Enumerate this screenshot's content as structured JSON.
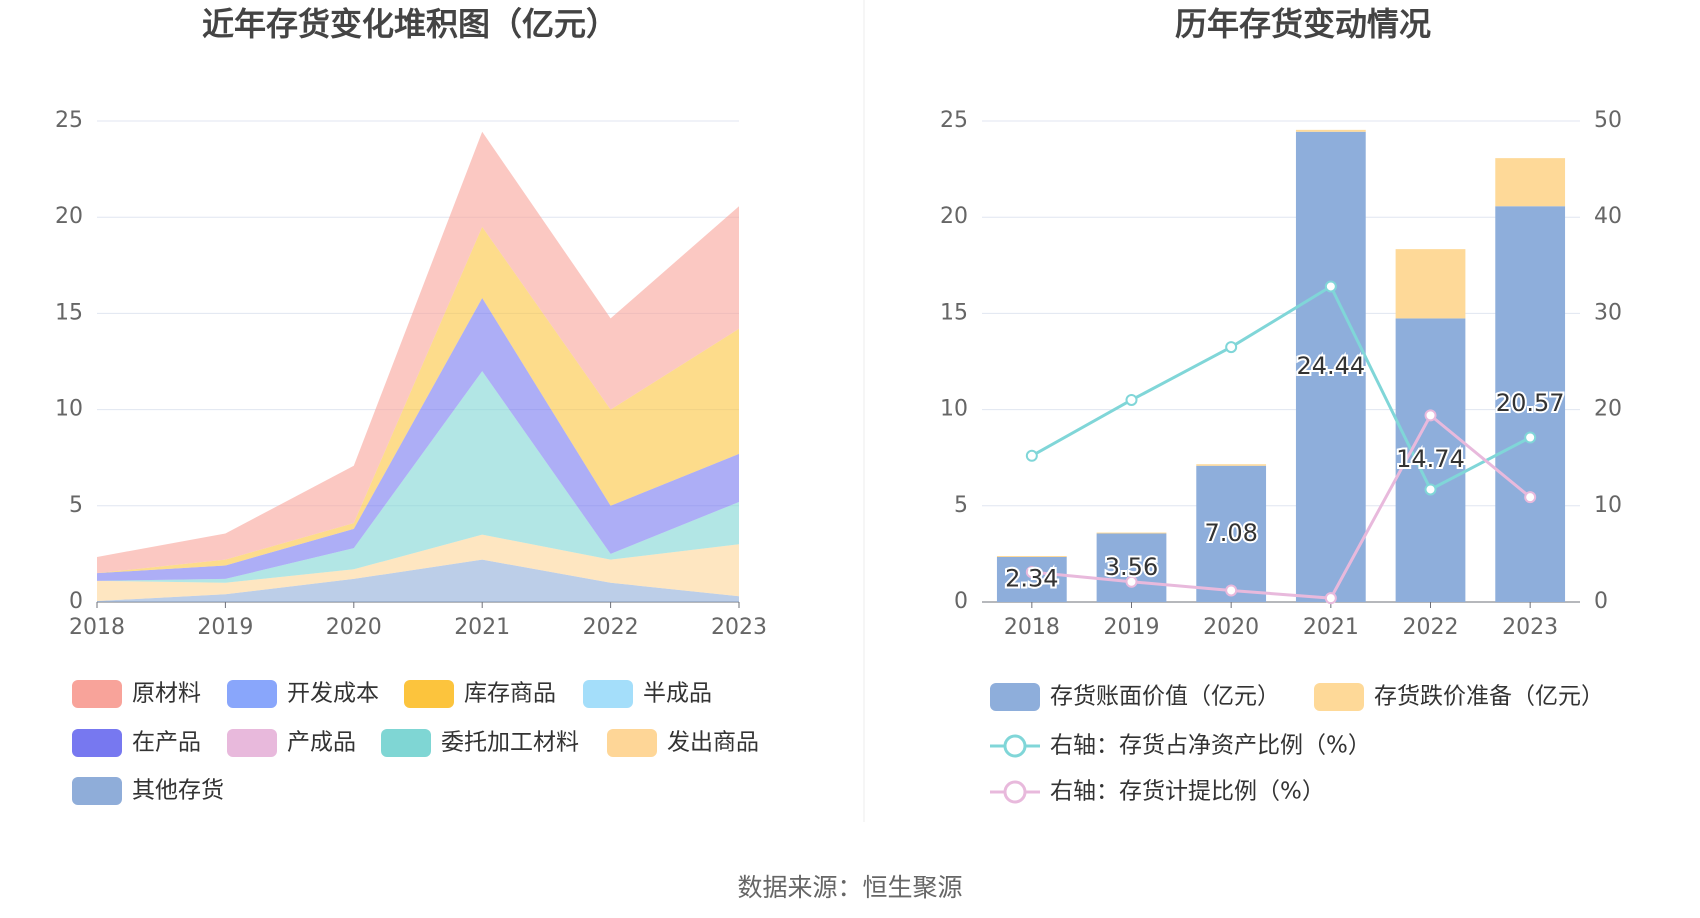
{
  "chart_data": [
    {
      "type": "area",
      "stacked": true,
      "title": "近年存货变化堆积图（亿元）",
      "categories": [
        "2018",
        "2019",
        "2020",
        "2021",
        "2022",
        "2023"
      ],
      "ylim": [
        0,
        25
      ],
      "yticks": [
        0,
        5,
        10,
        15,
        20,
        25
      ],
      "grid": true,
      "series": [
        {
          "name": "原材料",
          "color": "#f8a39a",
          "values": [
            0.84,
            1.36,
            2.98,
            4.94,
            4.74,
            6.37
          ]
        },
        {
          "name": "开发成本",
          "color": "#89a6fb",
          "values": [
            0,
            0,
            0,
            0,
            0,
            0
          ]
        },
        {
          "name": "库存商品",
          "color": "#fcc43d",
          "values": [
            0,
            0.3,
            0.3,
            3.7,
            5.0,
            6.5
          ]
        },
        {
          "name": "半成品",
          "color": "#a4defa",
          "values": [
            0,
            0,
            0,
            0,
            0,
            0
          ]
        },
        {
          "name": "在产品",
          "color": "#7778f0",
          "values": [
            0.4,
            0.7,
            1.0,
            3.8,
            2.5,
            2.5
          ]
        },
        {
          "name": "产成品",
          "color": "#e8b9dc",
          "values": [
            0,
            0,
            0,
            0,
            0,
            0
          ]
        },
        {
          "name": "委托加工材料",
          "color": "#7fd6d4",
          "values": [
            0,
            0.2,
            1.1,
            8.5,
            0.3,
            2.2
          ]
        },
        {
          "name": "发出商品",
          "color": "#fed697",
          "values": [
            1.05,
            0.6,
            0.5,
            1.3,
            1.2,
            2.7
          ]
        },
        {
          "name": "其他存货",
          "color": "#8fadd9",
          "values": [
            0.05,
            0.4,
            1.2,
            2.2,
            1.0,
            0.3
          ]
        }
      ]
    },
    {
      "type": "bar",
      "stacked": true,
      "title": "历年存货变动情况",
      "categories": [
        "2018",
        "2019",
        "2020",
        "2021",
        "2022",
        "2023"
      ],
      "ylim": [
        0,
        25
      ],
      "yticks": [
        0,
        5,
        10,
        15,
        20,
        25
      ],
      "y2lim": [
        0,
        50
      ],
      "y2ticks": [
        0,
        10,
        20,
        30,
        40,
        50
      ],
      "grid": true,
      "series": [
        {
          "name": "存货账面价值（亿元）",
          "type": "bar",
          "color": "#8eaedb",
          "values": [
            2.34,
            3.56,
            7.08,
            24.44,
            14.74,
            20.57
          ],
          "labels": true
        },
        {
          "name": "存货跌价准备（亿元）",
          "type": "bar",
          "color": "#fed998",
          "values": [
            0.05,
            0.05,
            0.08,
            0.1,
            3.6,
            2.5
          ]
        },
        {
          "name": "右轴：存货占净资产比例（%）",
          "type": "line",
          "axis": "y2",
          "color": "#80d6d8",
          "values": [
            15.2,
            21.0,
            26.5,
            32.8,
            11.7,
            17.1
          ]
        },
        {
          "name": "右轴：存货计提比例（%）",
          "type": "line",
          "axis": "y2",
          "color": "#e8b9dc",
          "values": [
            3.1,
            2.1,
            1.2,
            0.4,
            19.4,
            10.9
          ]
        }
      ]
    }
  ],
  "source": "数据来源：恒生聚源"
}
